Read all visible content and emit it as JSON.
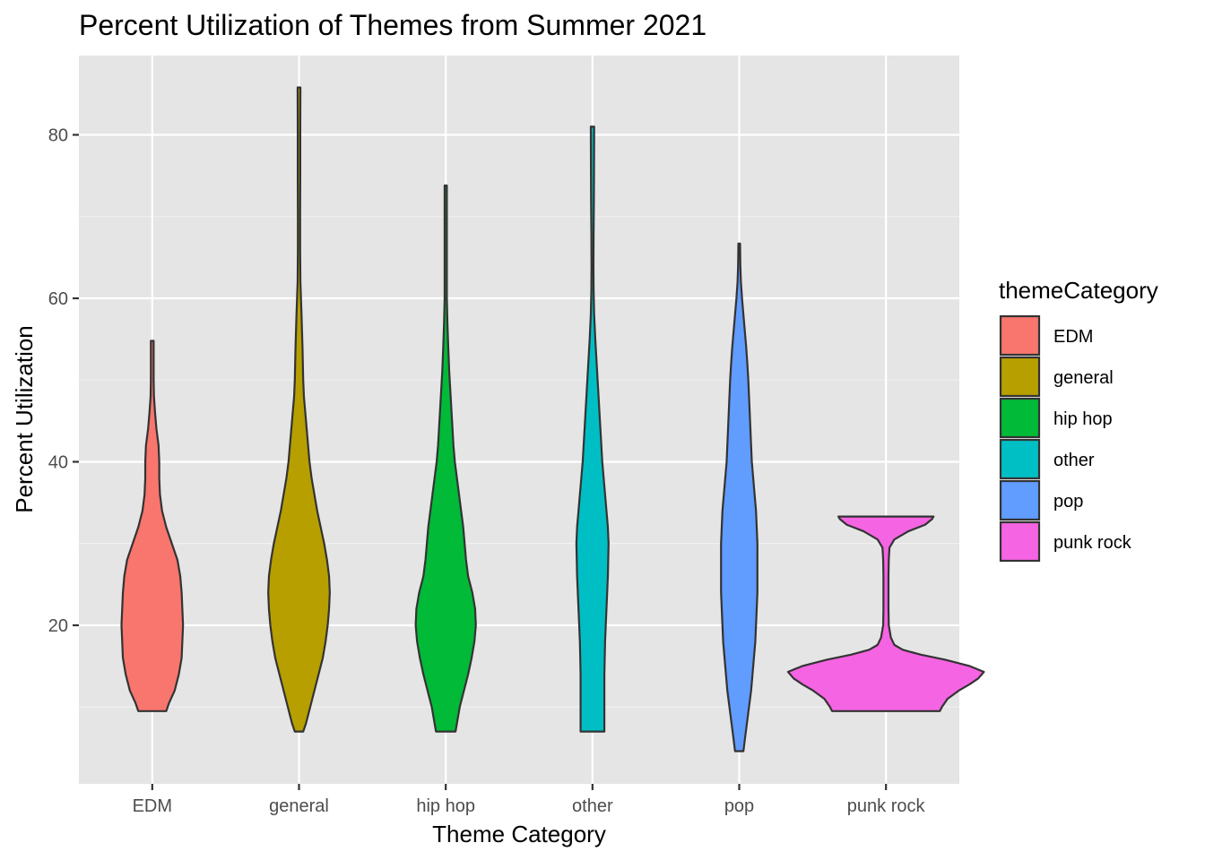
{
  "chart_data": {
    "type": "violin",
    "title": "Percent Utilization of Themes from Summer 2021",
    "xlabel": "Theme Category",
    "ylabel": "Percent Utilization",
    "ylim": [
      0.6,
      89.7
    ],
    "yticks": [
      20,
      40,
      60,
      80
    ],
    "categories": [
      "EDM",
      "general",
      "hip hop",
      "other",
      "pop",
      "punk rock"
    ],
    "legend": {
      "title": "themeCategory",
      "position": "right",
      "entries": [
        "EDM",
        "general",
        "hip hop",
        "other",
        "pop",
        "punk rock"
      ]
    },
    "colors": {
      "panel": "#e5e5e5",
      "grid_major": "#ffffff",
      "grid_minor": "#f2f2f2",
      "outline": "#333333",
      "EDM": "#F8766D",
      "general": "#B79F00",
      "hip hop": "#00BA38",
      "other": "#00BFC4",
      "pop": "#619CFF",
      "punk rock": "#F564E3"
    },
    "series": [
      {
        "name": "EDM",
        "min": 9.5,
        "max": 54.8,
        "density": [
          [
            9.5,
            0.1
          ],
          [
            10.5,
            0.12
          ],
          [
            12,
            0.16
          ],
          [
            14,
            0.19
          ],
          [
            16,
            0.21
          ],
          [
            18,
            0.215
          ],
          [
            20,
            0.22
          ],
          [
            22,
            0.215
          ],
          [
            24,
            0.21
          ],
          [
            26,
            0.2
          ],
          [
            28,
            0.18
          ],
          [
            30,
            0.14
          ],
          [
            32,
            0.1
          ],
          [
            34,
            0.07
          ],
          [
            36,
            0.055
          ],
          [
            38,
            0.05
          ],
          [
            40,
            0.05
          ],
          [
            42,
            0.045
          ],
          [
            44,
            0.03
          ],
          [
            46,
            0.02
          ],
          [
            48,
            0.012
          ],
          [
            50,
            0.01
          ],
          [
            52,
            0.01
          ],
          [
            54.8,
            0.01
          ]
        ]
      },
      {
        "name": "general",
        "min": 7.0,
        "max": 85.8,
        "density": [
          [
            7,
            0.03
          ],
          [
            8,
            0.05
          ],
          [
            10,
            0.08
          ],
          [
            12,
            0.11
          ],
          [
            14,
            0.14
          ],
          [
            16,
            0.17
          ],
          [
            18,
            0.19
          ],
          [
            20,
            0.205
          ],
          [
            22,
            0.215
          ],
          [
            24,
            0.22
          ],
          [
            26,
            0.215
          ],
          [
            28,
            0.2
          ],
          [
            30,
            0.18
          ],
          [
            32,
            0.155
          ],
          [
            34,
            0.13
          ],
          [
            36,
            0.11
          ],
          [
            38,
            0.09
          ],
          [
            40,
            0.075
          ],
          [
            42,
            0.065
          ],
          [
            44,
            0.055
          ],
          [
            46,
            0.045
          ],
          [
            48,
            0.035
          ],
          [
            50,
            0.03
          ],
          [
            54,
            0.025
          ],
          [
            58,
            0.018
          ],
          [
            62,
            0.01
          ],
          [
            66,
            0.008
          ],
          [
            70,
            0.008
          ],
          [
            75,
            0.009
          ],
          [
            80,
            0.009
          ],
          [
            85.8,
            0.01
          ]
        ]
      },
      {
        "name": "hip hop",
        "min": 7.0,
        "max": 73.8,
        "density": [
          [
            7,
            0.07
          ],
          [
            8,
            0.08
          ],
          [
            10,
            0.1
          ],
          [
            12,
            0.13
          ],
          [
            14,
            0.16
          ],
          [
            16,
            0.185
          ],
          [
            18,
            0.205
          ],
          [
            20,
            0.215
          ],
          [
            22,
            0.21
          ],
          [
            24,
            0.19
          ],
          [
            26,
            0.16
          ],
          [
            28,
            0.145
          ],
          [
            30,
            0.135
          ],
          [
            32,
            0.125
          ],
          [
            34,
            0.11
          ],
          [
            36,
            0.095
          ],
          [
            38,
            0.08
          ],
          [
            40,
            0.065
          ],
          [
            42,
            0.055
          ],
          [
            45,
            0.045
          ],
          [
            48,
            0.035
          ],
          [
            51,
            0.025
          ],
          [
            54,
            0.018
          ],
          [
            57,
            0.012
          ],
          [
            60,
            0.008
          ],
          [
            64,
            0.008
          ],
          [
            68,
            0.008
          ],
          [
            73.8,
            0.008
          ]
        ]
      },
      {
        "name": "other",
        "min": 7.0,
        "max": 81.0,
        "density": [
          [
            7,
            0.085
          ],
          [
            10,
            0.085
          ],
          [
            14,
            0.085
          ],
          [
            18,
            0.09
          ],
          [
            22,
            0.1
          ],
          [
            26,
            0.11
          ],
          [
            30,
            0.115
          ],
          [
            32,
            0.11
          ],
          [
            34,
            0.1
          ],
          [
            36,
            0.09
          ],
          [
            38,
            0.08
          ],
          [
            40,
            0.07
          ],
          [
            43,
            0.06
          ],
          [
            46,
            0.05
          ],
          [
            49,
            0.04
          ],
          [
            52,
            0.03
          ],
          [
            55,
            0.02
          ],
          [
            58,
            0.012
          ],
          [
            61,
            0.008
          ],
          [
            64,
            0.007
          ],
          [
            68,
            0.008
          ],
          [
            72,
            0.01
          ],
          [
            76,
            0.011
          ],
          [
            81,
            0.012
          ]
        ]
      },
      {
        "name": "pop",
        "min": 4.6,
        "max": 66.7,
        "density": [
          [
            4.6,
            0.03
          ],
          [
            6,
            0.04
          ],
          [
            8,
            0.055
          ],
          [
            10,
            0.07
          ],
          [
            12,
            0.085
          ],
          [
            14,
            0.095
          ],
          [
            16,
            0.105
          ],
          [
            18,
            0.115
          ],
          [
            20,
            0.12
          ],
          [
            22,
            0.125
          ],
          [
            24,
            0.13
          ],
          [
            26,
            0.13
          ],
          [
            28,
            0.13
          ],
          [
            30,
            0.13
          ],
          [
            32,
            0.125
          ],
          [
            34,
            0.12
          ],
          [
            36,
            0.11
          ],
          [
            38,
            0.1
          ],
          [
            40,
            0.09
          ],
          [
            42,
            0.085
          ],
          [
            44,
            0.08
          ],
          [
            46,
            0.075
          ],
          [
            48,
            0.07
          ],
          [
            50,
            0.065
          ],
          [
            52,
            0.058
          ],
          [
            54,
            0.05
          ],
          [
            56,
            0.04
          ],
          [
            58,
            0.03
          ],
          [
            60,
            0.02
          ],
          [
            62,
            0.012
          ],
          [
            64,
            0.008
          ],
          [
            66.7,
            0.006
          ]
        ]
      },
      {
        "name": "punk rock",
        "min": 9.5,
        "max": 33.3,
        "density": [
          [
            9.5,
            0.385
          ],
          [
            10,
            0.4
          ],
          [
            11,
            0.44
          ],
          [
            12,
            0.52
          ],
          [
            12.8,
            0.6
          ],
          [
            13.5,
            0.66
          ],
          [
            14.3,
            0.7
          ],
          [
            15,
            0.6
          ],
          [
            15.8,
            0.42
          ],
          [
            16.4,
            0.25
          ],
          [
            17,
            0.12
          ],
          [
            17.6,
            0.06
          ],
          [
            18.5,
            0.035
          ],
          [
            20,
            0.02
          ],
          [
            22,
            0.018
          ],
          [
            24,
            0.018
          ],
          [
            26,
            0.018
          ],
          [
            28,
            0.02
          ],
          [
            29.5,
            0.025
          ],
          [
            30.5,
            0.06
          ],
          [
            31.5,
            0.16
          ],
          [
            32.3,
            0.28
          ],
          [
            33.0,
            0.33
          ],
          [
            33.3,
            0.34
          ]
        ]
      }
    ]
  }
}
